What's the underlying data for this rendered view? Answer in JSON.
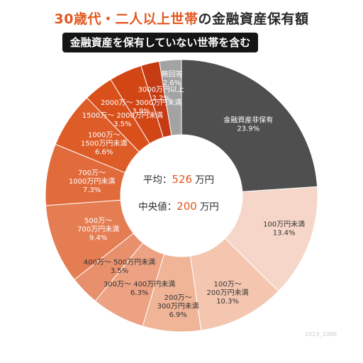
{
  "title": {
    "part1": "30歳代・二人以上世帯",
    "part2": "の金融資産保有額"
  },
  "subtitle": "金融資産を保有していない世帯を含む",
  "center": {
    "mean_label": "平均：",
    "mean_value": "526",
    "mean_unit": "万円",
    "median_label": "中央値：",
    "median_value": "200",
    "median_unit": "万円"
  },
  "watermark": "2023_33NE",
  "colors": {
    "accent": "#e2571f",
    "dark_text": "#2a2a2a"
  },
  "chart_data": {
    "type": "pie",
    "title": "30歳代・二人以上世帯の金融資産保有額",
    "subtitle": "金融資産を保有していない世帯を含む",
    "unit": "%",
    "slices": [
      {
        "label": "金融資産非保有",
        "value": 23.9,
        "color": "#4f4f4f",
        "text_color": "#ffffff"
      },
      {
        "label": "100万円未満",
        "value": 13.4,
        "color": "#f6d6c8",
        "text_color": "#333333"
      },
      {
        "label": "100万～\n200万円未満",
        "value": 10.3,
        "color": "#f4c6b0",
        "text_color": "#333333"
      },
      {
        "label": "200万～\n300万円未満",
        "value": 6.9,
        "color": "#f0b497",
        "text_color": "#333333"
      },
      {
        "label": "300万～ 400万円未満",
        "value": 6.3,
        "color": "#eca283",
        "text_color": "#333333"
      },
      {
        "label": "400万～ 500万円未満",
        "value": 3.5,
        "color": "#e8906c",
        "text_color": "#333333"
      },
      {
        "label": "500万～\n700万円未満",
        "value": 9.4,
        "color": "#e57d53",
        "text_color": "#ffffff"
      },
      {
        "label": "700万～\n1000万円未満",
        "value": 7.3,
        "color": "#e16b3b",
        "text_color": "#ffffff"
      },
      {
        "label": "1000万～\n1500万円未満",
        "value": 6.6,
        "color": "#dd5c28",
        "text_color": "#ffffff"
      },
      {
        "label": "1500万～ 2000万円未満",
        "value": 3.5,
        "color": "#d9501b",
        "text_color": "#ffffff"
      },
      {
        "label": "2000万～ 3000万円未満",
        "value": 3.9,
        "color": "#d24616",
        "text_color": "#ffffff"
      },
      {
        "label": "3000万円以上",
        "value": 2.2,
        "color": "#c43b14",
        "text_color": "#ffffff"
      },
      {
        "label": "無回答",
        "value": 2.6,
        "color": "#a3a3a3",
        "text_color": "#ffffff"
      }
    ]
  }
}
